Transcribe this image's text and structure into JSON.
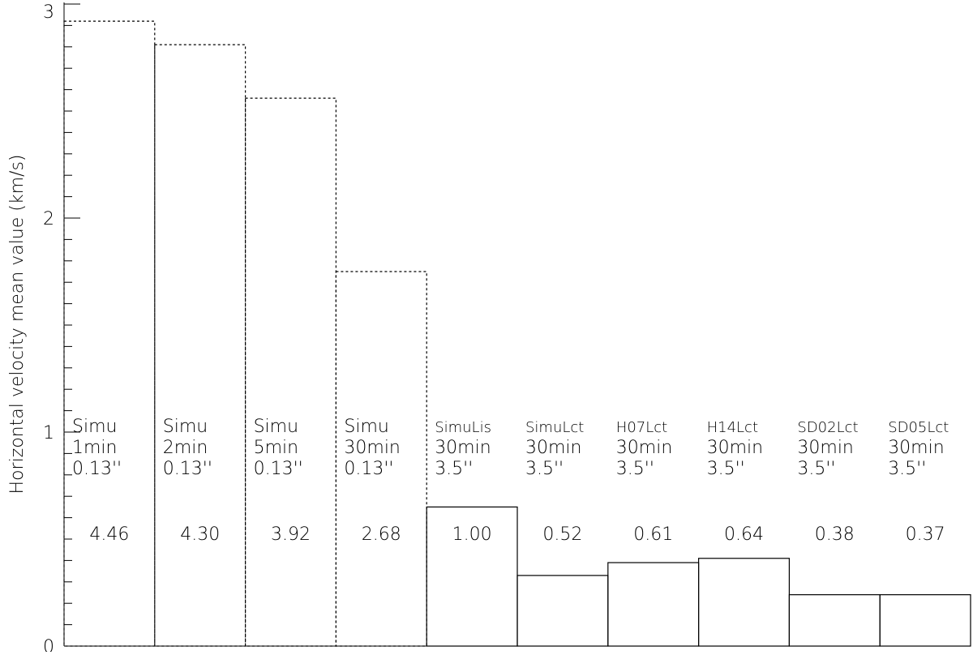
{
  "chart_data": {
    "type": "bar",
    "y_label": "Horizontal velocity mean value (km/s)",
    "categories": [
      [
        "Simu",
        "1min",
        "0.13''"
      ],
      [
        "Simu",
        "2min",
        "0.13''"
      ],
      [
        "Simu",
        "5min",
        "0.13''"
      ],
      [
        "Simu",
        "30min",
        "0.13''"
      ],
      [
        "SimuLis",
        "30min",
        "3.5''"
      ],
      [
        "SimuLct",
        "30min",
        "3.5''"
      ],
      [
        "H07Lct",
        "30min",
        "3.5''"
      ],
      [
        "H14Lct",
        "30min",
        "3.5''"
      ],
      [
        "SD02Lct",
        "30min",
        "3.5''"
      ],
      [
        "SD05Lct",
        "30min",
        "3.5''"
      ]
    ],
    "values": [
      2.92,
      2.81,
      2.56,
      1.75,
      0.65,
      0.33,
      0.39,
      0.41,
      0.24,
      0.24
    ],
    "ratio_labels": [
      "4.46",
      "4.30",
      "3.92",
      "2.68",
      "1.00",
      "0.52",
      "0.61",
      "0.64",
      "0.38",
      "0.37"
    ],
    "line_styles": [
      "dotted",
      "dotted",
      "dotted",
      "dotted",
      "solid",
      "solid",
      "solid",
      "solid",
      "solid",
      "solid"
    ],
    "color": "#000000",
    "ylim": [
      0,
      3
    ],
    "yticks": [
      0,
      1,
      2,
      3
    ],
    "minor_step": 0.1
  }
}
